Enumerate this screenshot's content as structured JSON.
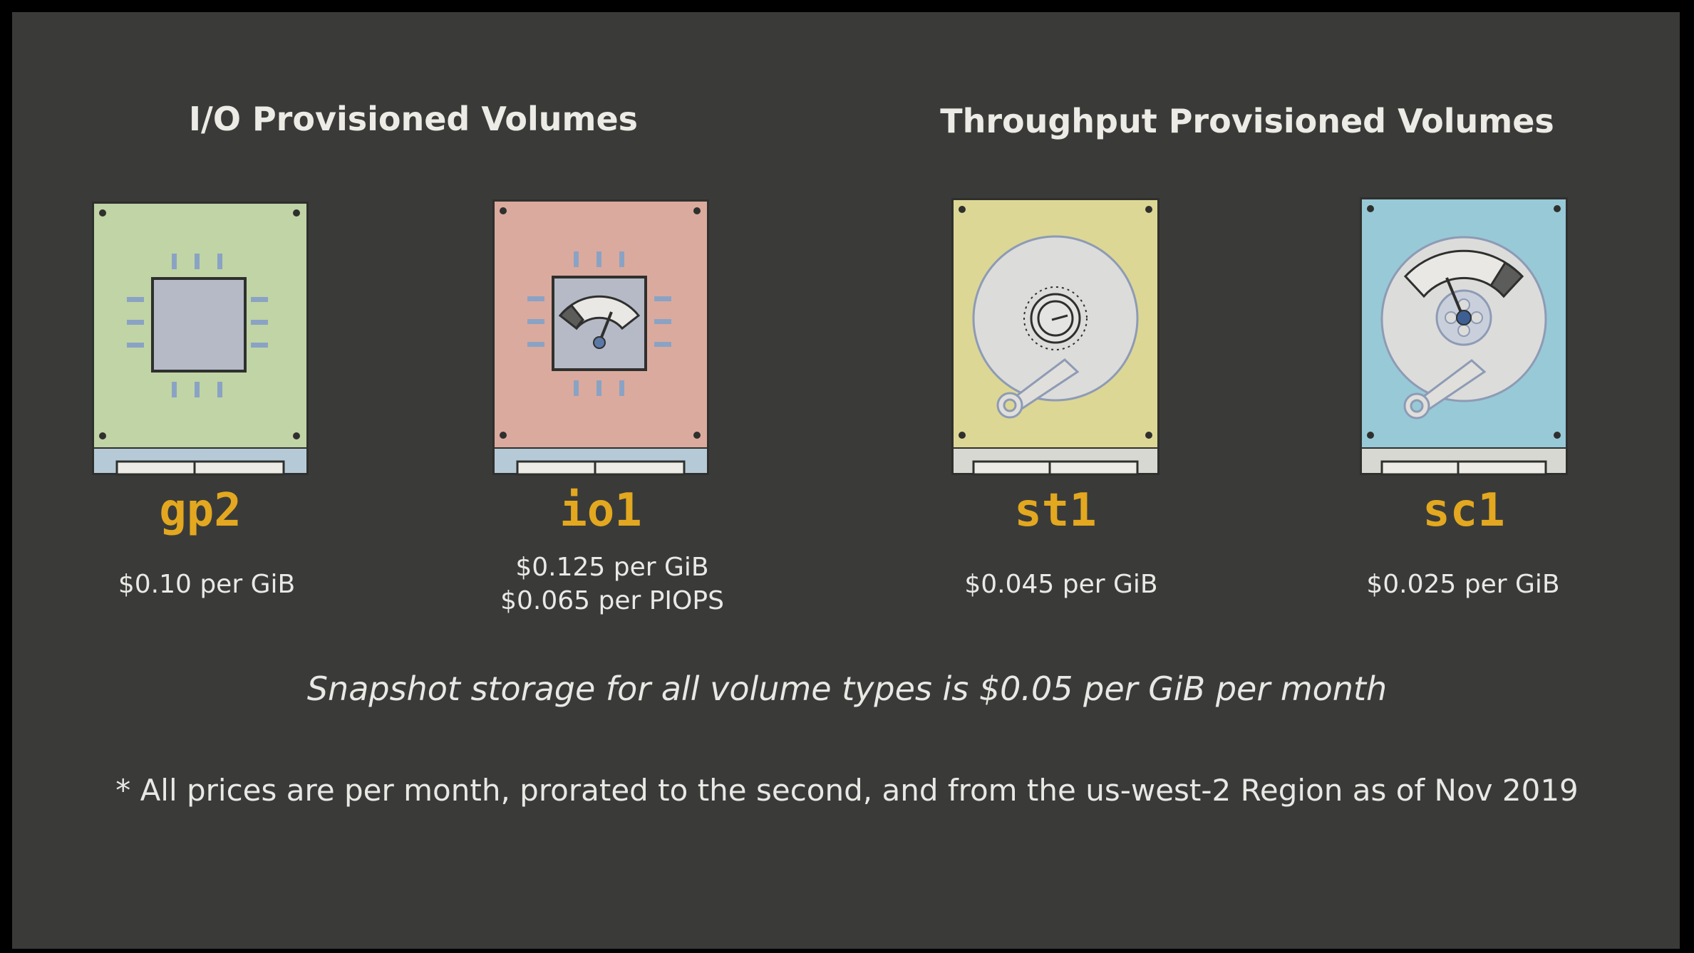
{
  "sections": {
    "io": {
      "title": "I/O Provisioned Volumes"
    },
    "throughput": {
      "title": "Throughput Provisioned Volumes"
    }
  },
  "volumes": [
    {
      "name": "gp2",
      "prices": [
        "$0.10 per GiB"
      ],
      "color": "#c0d4a5",
      "icon": "chip-icon"
    },
    {
      "name": "io1",
      "prices": [
        "$0.125 per GiB",
        "$0.065 per PIOPS"
      ],
      "color": "#dbaa9e",
      "icon": "chip-gauge-icon"
    },
    {
      "name": "st1",
      "prices": [
        "$0.045 per GiB"
      ],
      "color": "#dcd795",
      "icon": "hard-disk-icon"
    },
    {
      "name": "sc1",
      "prices": [
        "$0.025 per GiB"
      ],
      "color": "#98c9d7",
      "icon": "hard-disk-gauge-icon"
    }
  ],
  "colors": {
    "background": "#3a3b39",
    "accent": "#e3a81f",
    "text": "#ecebe6"
  },
  "snapshot_note": "Snapshot storage for all volume types is $0.05 per GiB per month",
  "footnote": "* All prices are per month, prorated to the second, and from the us-west-2 Region as of Nov 2019"
}
